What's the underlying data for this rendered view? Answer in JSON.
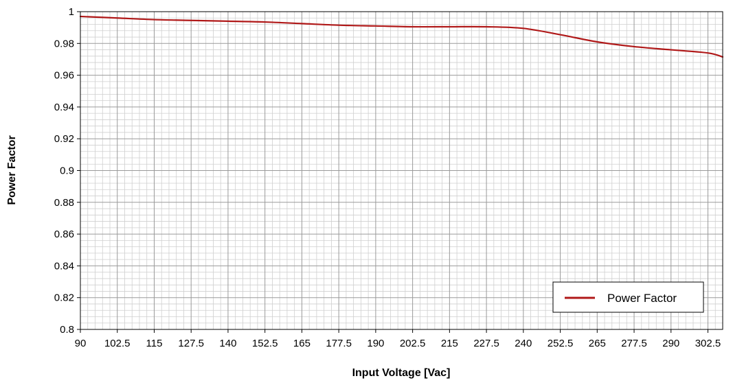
{
  "chart_data": {
    "type": "line",
    "xlabel": "Input Voltage [Vac]",
    "ylabel": "Power Factor",
    "xlim": [
      90,
      307.5
    ],
    "ylim": [
      0.8,
      1.0
    ],
    "x_ticks": [
      "90",
      "102.5",
      "115",
      "127.5",
      "140",
      "152.5",
      "165",
      "177.5",
      "190",
      "202.5",
      "215",
      "227.5",
      "240",
      "252.5",
      "265",
      "277.5",
      "290",
      "302.5"
    ],
    "y_ticks": [
      "0.8",
      "0.82",
      "0.84",
      "0.86",
      "0.88",
      "0.9",
      "0.92",
      "0.94",
      "0.96",
      "0.98",
      "1"
    ],
    "grid": true,
    "legend_position": "bottom-right",
    "series": [
      {
        "name": "Power Factor",
        "color": "#b01818",
        "x": [
          90,
          102.5,
          115,
          127.5,
          140,
          152.5,
          165,
          177.5,
          190,
          202.5,
          215,
          227.5,
          240,
          252.5,
          265,
          277.5,
          290,
          302.5,
          307.5
        ],
        "y": [
          0.997,
          0.996,
          0.995,
          0.9945,
          0.994,
          0.9935,
          0.9925,
          0.9915,
          0.991,
          0.9905,
          0.9905,
          0.9905,
          0.9895,
          0.9855,
          0.981,
          0.978,
          0.976,
          0.974,
          0.9715
        ]
      }
    ]
  }
}
